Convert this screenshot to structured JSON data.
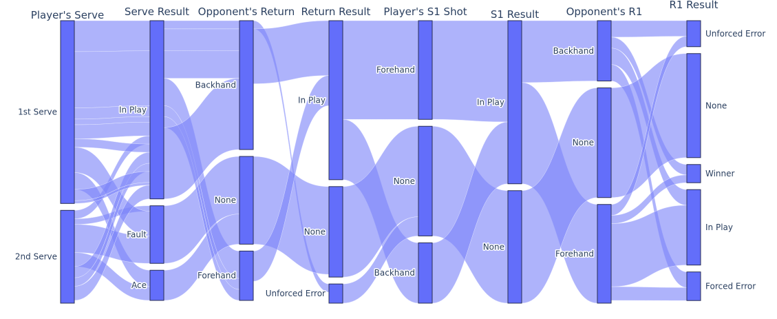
{
  "chart_data": {
    "type": "parallel-categories",
    "colors": {
      "ribbon": "#7c84f8",
      "bar": "#636efa",
      "bar_outline": "#2a2f54",
      "text": "#2a3f5f"
    },
    "dimensions": [
      {
        "label": "Player's Serve",
        "categories": [
          {
            "label": "1st Serve",
            "count": 65,
            "label_side": "left"
          },
          {
            "label": "2nd Serve",
            "count": 33,
            "label_side": "left"
          }
        ]
      },
      {
        "label": "Serve Result",
        "categories": [
          {
            "label": "In Play",
            "count": 65,
            "label_side": "left"
          },
          {
            "label": "Fault",
            "count": 21,
            "label_side": "left"
          },
          {
            "label": "Ace",
            "count": 11,
            "label_side": "left"
          }
        ]
      },
      {
        "label": "Opponent's Return",
        "categories": [
          {
            "label": "Backhand",
            "count": 47,
            "label_side": "left"
          },
          {
            "label": "None",
            "count": 32,
            "label_side": "left"
          },
          {
            "label": "Forehand",
            "count": 18,
            "label_side": "left"
          }
        ]
      },
      {
        "label": "Return Result",
        "categories": [
          {
            "label": "In Play",
            "count": 58,
            "label_side": "left"
          },
          {
            "label": "None",
            "count": 33,
            "label_side": "left"
          },
          {
            "label": "Unforced Error",
            "count": 7,
            "label_side": "left"
          }
        ]
      },
      {
        "label": "Player's S1 Shot",
        "categories": [
          {
            "label": "Forehand",
            "count": 36,
            "label_side": "left"
          },
          {
            "label": "None",
            "count": 40,
            "label_side": "left"
          },
          {
            "label": "Backhand",
            "count": 22,
            "label_side": "left"
          }
        ]
      },
      {
        "label": "S1 Result",
        "categories": [
          {
            "label": "In Play",
            "count": 58,
            "label_side": "left"
          },
          {
            "label": "None",
            "count": 40,
            "label_side": "left"
          }
        ]
      },
      {
        "label": "Opponent's R1",
        "categories": [
          {
            "label": "Backhand",
            "count": 22,
            "label_side": "left"
          },
          {
            "label": "None",
            "count": 40,
            "label_side": "left"
          },
          {
            "label": "Forehand",
            "count": 36,
            "label_side": "left"
          }
        ]
      },
      {
        "label": "R1 Result",
        "categories": [
          {
            "label": "Unforced Error",
            "count": 10,
            "label_side": "right"
          },
          {
            "label": "None",
            "count": 40,
            "label_side": "right"
          },
          {
            "label": "Winner",
            "count": 7,
            "label_side": "right"
          },
          {
            "label": "In Play",
            "count": 29,
            "label_side": "right"
          },
          {
            "label": "Forced Error",
            "count": 11,
            "label_side": "right"
          }
        ]
      }
    ],
    "flows": [
      [
        [
          0,
          0
        ],
        [
          1,
          0
        ],
        [
          11,
          2
        ]
      ],
      [
        [
          0,
          0
        ],
        [
          1,
          0
        ],
        [
          20,
          2
        ]
      ],
      [
        [
          0,
          0
        ],
        [
          1,
          0
        ],
        [
          4,
          0
        ]
      ],
      [
        [
          0,
          0
        ],
        [
          1,
          0
        ],
        [
          2,
          1
        ]
      ],
      [
        [
          0,
          0
        ],
        [
          1,
          0
        ],
        [
          5,
          1
        ]
      ],
      [
        [
          0,
          1
        ],
        [
          1,
          0
        ],
        [
          3,
          3
        ]
      ],
      [
        [
          0,
          1
        ],
        [
          1,
          1
        ],
        [
          2,
          3
        ]
      ],
      [
        [
          0,
          0
        ],
        [
          1,
          0
        ],
        [
          3,
          2
        ]
      ],
      [
        [
          0,
          0
        ],
        [
          1,
          1
        ],
        [
          9,
          3
        ]
      ],
      [
        [
          0,
          0
        ],
        [
          1,
          2
        ],
        [
          6,
          3
        ]
      ],
      [
        [
          0,
          1
        ],
        [
          1,
          1
        ],
        [
          10,
          3
        ]
      ],
      [
        [
          0,
          1
        ],
        [
          1,
          2
        ],
        [
          5,
          3
        ]
      ],
      [
        [
          0,
          1
        ],
        [
          1,
          0
        ],
        [
          4,
          0
        ]
      ],
      [
        [
          0,
          1
        ],
        [
          1,
          0
        ],
        [
          3,
          2
        ]
      ],
      [
        [
          0,
          0
        ],
        [
          1,
          0
        ],
        [
          4,
          1
        ]
      ],
      [
        [
          1,
          0
        ],
        [
          2,
          0
        ],
        [
          6,
          0
        ],
        [
          14,
          0
        ],
        [
          5,
          0
        ],
        [
          2,
          0
        ],
        [
          3,
          2
        ],
        [
          3,
          4
        ]
      ],
      [
        [
          1,
          0
        ],
        [
          2,
          0
        ],
        [
          6,
          1
        ],
        [
          14,
          0
        ],
        [
          13,
          0
        ],
        [
          3,
          0
        ],
        [
          2,
          0
        ],
        [
          3,
          2
        ],
        [
          8,
          3
        ]
      ],
      [
        [
          1,
          0
        ],
        [
          2,
          0
        ],
        [
          6,
          2
        ],
        [
          12,
          2
        ],
        [
          10,
          1
        ]
      ],
      [
        [
          1,
          0
        ],
        [
          2,
          2
        ],
        [
          10,
          0
        ]
      ],
      [
        [
          1,
          1
        ],
        [
          2,
          1
        ],
        [
          21,
          1
        ]
      ],
      [
        [
          1,
          2
        ],
        [
          2,
          1
        ],
        [
          11,
          1
        ]
      ],
      [
        [
          1,
          0
        ],
        [
          2,
          2
        ],
        [
          4,
          0
        ],
        [
          4,
          3
        ]
      ],
      [
        [
          1,
          0
        ],
        [
          2,
          2
        ],
        [
          4,
          2
        ]
      ],
      [
        [
          2,
          0
        ],
        [
          3,
          0
        ],
        [
          20,
          0
        ]
      ],
      [
        [
          2,
          0
        ],
        [
          3,
          0
        ],
        [
          27,
          0
        ]
      ],
      [
        [
          2,
          1
        ],
        [
          3,
          1
        ],
        [
          32,
          0
        ]
      ],
      [
        [
          2,
          2
        ],
        [
          3,
          0
        ],
        [
          11,
          0
        ]
      ],
      [
        [
          2,
          2
        ],
        [
          3,
          2
        ],
        [
          7,
          0
        ]
      ],
      [
        [
          3,
          0
        ],
        [
          4,
          0
        ],
        [
          36,
          0
        ]
      ],
      [
        [
          3,
          0
        ],
        [
          4,
          2
        ],
        [
          22,
          0
        ]
      ],
      [
        [
          3,
          1
        ],
        [
          4,
          1
        ],
        [
          33,
          0
        ]
      ],
      [
        [
          3,
          2
        ],
        [
          4,
          1
        ],
        [
          7,
          0
        ]
      ],
      [
        [
          4,
          0
        ],
        [
          5,
          0
        ],
        [
          36,
          0
        ]
      ],
      [
        [
          4,
          1
        ],
        [
          5,
          1
        ],
        [
          40,
          0
        ]
      ],
      [
        [
          4,
          2
        ],
        [
          5,
          0
        ],
        [
          22,
          0
        ]
      ],
      [
        [
          5,
          0
        ],
        [
          6,
          0
        ],
        [
          22,
          0
        ]
      ],
      [
        [
          5,
          0
        ],
        [
          6,
          2
        ],
        [
          36,
          0
        ]
      ],
      [
        [
          5,
          1
        ],
        [
          6,
          1
        ],
        [
          40,
          0
        ]
      ],
      [
        [
          6,
          0
        ],
        [
          7,
          0
        ],
        [
          6,
          0
        ]
      ],
      [
        [
          6,
          0
        ],
        [
          7,
          2
        ],
        [
          4,
          0
        ]
      ],
      [
        [
          6,
          0
        ],
        [
          7,
          3
        ],
        [
          6,
          0
        ]
      ],
      [
        [
          6,
          0
        ],
        [
          7,
          4
        ],
        [
          6,
          0
        ]
      ],
      [
        [
          6,
          1
        ],
        [
          7,
          1
        ],
        [
          40,
          0
        ]
      ],
      [
        [
          6,
          2
        ],
        [
          7,
          0
        ],
        [
          4,
          0
        ]
      ],
      [
        [
          6,
          2
        ],
        [
          7,
          2
        ],
        [
          3,
          0
        ]
      ],
      [
        [
          6,
          2
        ],
        [
          7,
          3
        ],
        [
          23,
          0
        ]
      ],
      [
        [
          6,
          2
        ],
        [
          7,
          4
        ],
        [
          5,
          0
        ]
      ],
      [
        [
          6,
          2
        ],
        [
          7,
          4
        ],
        [
          1,
          0
        ]
      ]
    ]
  }
}
